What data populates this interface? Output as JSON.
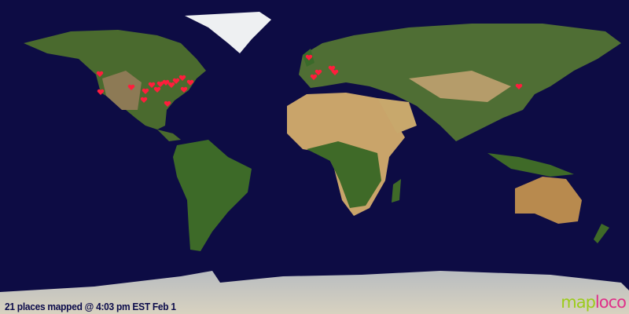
{
  "caption": "21 places mapped @ 4:03 pm EST Feb 1",
  "logo": {
    "part1": "map",
    "part2": "loco"
  },
  "marker_icon": "heart-icon",
  "colors": {
    "ocean": "#0d0c44",
    "marker": "#ff1d3c",
    "logo_green": "#9ccc1c",
    "logo_pink": "#e0308a"
  }
}
